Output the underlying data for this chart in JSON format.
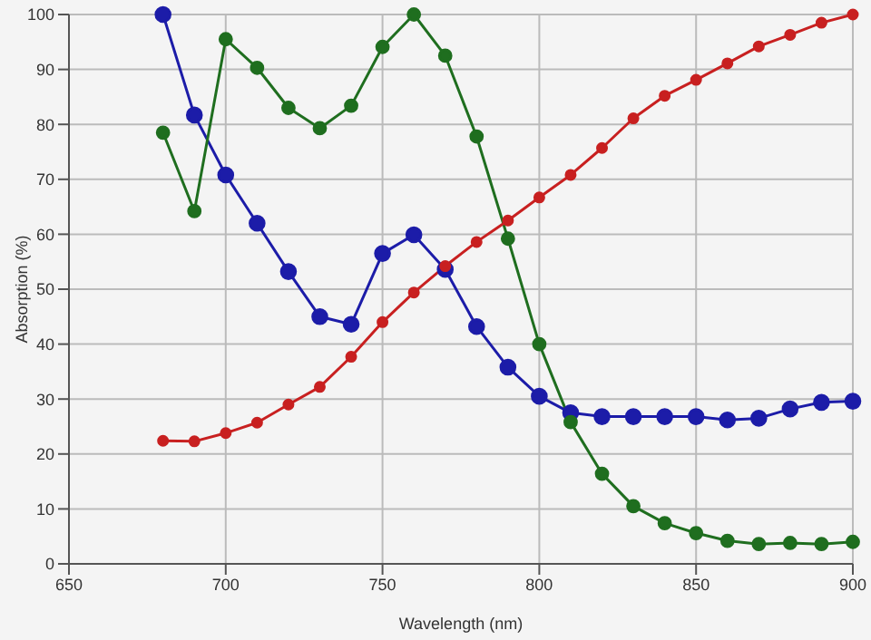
{
  "chart_data": {
    "type": "line",
    "xlabel": "Wavelength (nm)",
    "ylabel": "Absorption (%)",
    "x": [
      680,
      690,
      700,
      710,
      720,
      730,
      740,
      750,
      760,
      770,
      780,
      790,
      800,
      810,
      820,
      830,
      840,
      850,
      860,
      870,
      880,
      890,
      900
    ],
    "series": [
      {
        "color": "#1c1ca8",
        "values": [
          100,
          81.7,
          70.8,
          62,
          53.2,
          45,
          43.6,
          56.5,
          59.9,
          53.6,
          43.2,
          35.8,
          30.5,
          27.5,
          26.8,
          26.8,
          26.8,
          26.8,
          26.2,
          26.5,
          28.2,
          29.4,
          29.6
        ]
      },
      {
        "color": "#1f6e1f",
        "values": [
          78.5,
          64.2,
          95.5,
          90.3,
          83,
          79.3,
          83.4,
          94.1,
          100,
          92.5,
          77.8,
          59.2,
          40,
          25.8,
          16.4,
          10.5,
          7.4,
          5.6,
          4.2,
          3.6,
          3.8,
          3.6,
          4
        ]
      },
      {
        "color": "#c82020",
        "values": [
          22.4,
          22.3,
          23.8,
          25.7,
          29,
          32.2,
          37.7,
          44,
          49.4,
          54.2,
          58.6,
          62.5,
          66.7,
          70.8,
          75.7,
          81.1,
          85.2,
          88.1,
          91.1,
          94.2,
          96.3,
          98.5,
          100
        ]
      }
    ],
    "xlim": [
      650,
      900
    ],
    "xticks": [
      650,
      700,
      750,
      800,
      850,
      900
    ],
    "ylim": [
      0,
      100
    ],
    "yticks": [
      0,
      10,
      20,
      30,
      40,
      50,
      60,
      70,
      80,
      90,
      100
    ],
    "grid": true,
    "legend": false,
    "marker": "circle",
    "line_style": "solid"
  }
}
